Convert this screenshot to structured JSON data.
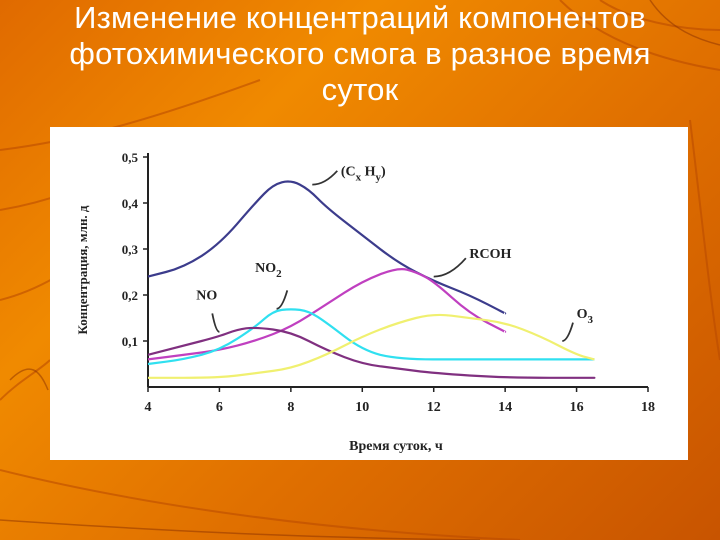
{
  "slide": {
    "title_lines": [
      "Изменение концентраций компонентов",
      "фотохимического смога в разное время",
      "суток"
    ]
  },
  "colors": {
    "background": "#e87a00",
    "title_text": "#ffffff",
    "CxHy": "#3c3c8c",
    "RCOH": "#c040c0",
    "NO2": "#30e0f0",
    "NO": "#803080",
    "O3": "#f0f070"
  },
  "chart_data": {
    "type": "line",
    "xlabel": "Время суток, ч",
    "ylabel": "Концентрация, млн. д",
    "xlim": [
      4,
      18
    ],
    "ylim": [
      0,
      0.5
    ],
    "x_ticks": [
      "4",
      "6",
      "8",
      "10",
      "12",
      "14",
      "16",
      "18"
    ],
    "y_ticks": [
      "0,1",
      "0,2",
      "0,3",
      "0,4",
      "0,5"
    ],
    "grid": false,
    "series": [
      {
        "name": "(Cx Hy)",
        "name_main": "(C",
        "name_sub1": "x",
        "name_mid": " H",
        "name_sub2": "y",
        "name_end": ")",
        "color": "#3c3c8c",
        "points": [
          [
            4,
            0.24
          ],
          [
            5,
            0.26
          ],
          [
            6,
            0.31
          ],
          [
            7,
            0.4
          ],
          [
            7.5,
            0.44
          ],
          [
            8,
            0.45
          ],
          [
            8.5,
            0.43
          ],
          [
            9,
            0.39
          ],
          [
            10,
            0.33
          ],
          [
            11,
            0.27
          ],
          [
            12,
            0.23
          ],
          [
            13,
            0.2
          ],
          [
            14,
            0.16
          ]
        ]
      },
      {
        "name": "RCOH",
        "color": "#c040c0",
        "points": [
          [
            4,
            0.06
          ],
          [
            5,
            0.07
          ],
          [
            6,
            0.08
          ],
          [
            7,
            0.1
          ],
          [
            8,
            0.13
          ],
          [
            9,
            0.18
          ],
          [
            10,
            0.23
          ],
          [
            11,
            0.26
          ],
          [
            11.5,
            0.25
          ],
          [
            12,
            0.23
          ],
          [
            13,
            0.16
          ],
          [
            14,
            0.12
          ]
        ]
      },
      {
        "name": "NO2",
        "name_main": "NO",
        "name_sub": "2",
        "color": "#30e0f0",
        "points": [
          [
            4,
            0.05
          ],
          [
            5,
            0.06
          ],
          [
            6,
            0.08
          ],
          [
            7,
            0.13
          ],
          [
            7.5,
            0.165
          ],
          [
            8,
            0.17
          ],
          [
            8.5,
            0.165
          ],
          [
            9,
            0.14
          ],
          [
            10,
            0.08
          ],
          [
            11,
            0.06
          ],
          [
            13,
            0.06
          ],
          [
            16.5,
            0.06
          ]
        ]
      },
      {
        "name": "NO",
        "color": "#803080",
        "points": [
          [
            4,
            0.07
          ],
          [
            5,
            0.09
          ],
          [
            6,
            0.11
          ],
          [
            6.5,
            0.125
          ],
          [
            7,
            0.13
          ],
          [
            8,
            0.12
          ],
          [
            9,
            0.08
          ],
          [
            10,
            0.05
          ],
          [
            11,
            0.04
          ],
          [
            12,
            0.03
          ],
          [
            14,
            0.02
          ],
          [
            16.5,
            0.02
          ]
        ]
      },
      {
        "name": "O3",
        "name_main": "O",
        "name_sub": "3",
        "color": "#f0f070",
        "points": [
          [
            4,
            0.02
          ],
          [
            6,
            0.02
          ],
          [
            7,
            0.03
          ],
          [
            8,
            0.04
          ],
          [
            9,
            0.07
          ],
          [
            10,
            0.11
          ],
          [
            11,
            0.14
          ],
          [
            12,
            0.16
          ],
          [
            13,
            0.15
          ],
          [
            14,
            0.14
          ],
          [
            15,
            0.11
          ],
          [
            16,
            0.07
          ],
          [
            16.5,
            0.06
          ]
        ]
      }
    ]
  }
}
